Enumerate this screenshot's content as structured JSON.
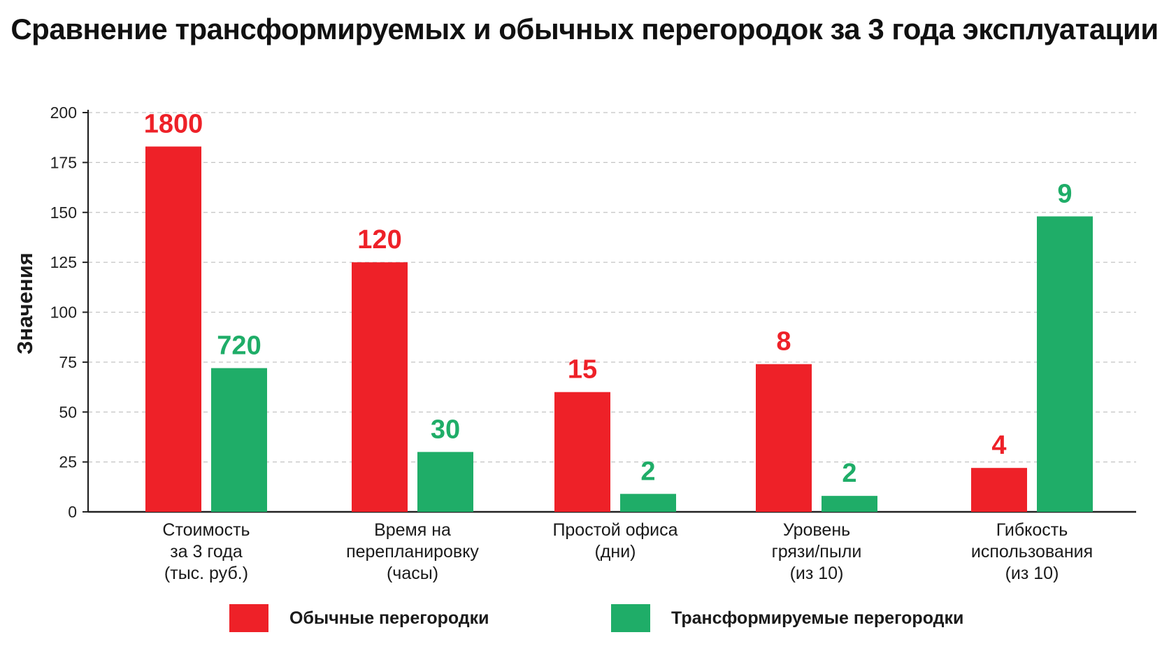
{
  "chart_data": {
    "type": "bar",
    "title": "Сравнение трансформируемых и обычных перегородок за 3 года эксплуатации",
    "ylabel": "Значения",
    "xlabel": "",
    "ylim": [
      0,
      200
    ],
    "yticks": [
      "0",
      "25",
      "50",
      "75",
      "100",
      "125",
      "150",
      "175",
      "200"
    ],
    "grid": true,
    "legend_position": "bottom",
    "categories": [
      [
        "Стоимость",
        "за 3 года",
        "(тыс. руб.)"
      ],
      [
        "Время на",
        "перепланировку",
        "(часы)"
      ],
      [
        "Простой офиса",
        "(дни)"
      ],
      [
        "Уровень",
        "грязи/пыли",
        "(из 10)"
      ],
      [
        "Гибкость",
        "использования",
        "(из 10)"
      ]
    ],
    "series": [
      {
        "name": "Обычные перегородки",
        "color": "#ee2128",
        "values": [
          183,
          125,
          60,
          74,
          22
        ],
        "labels": [
          "1800",
          "120",
          "15",
          "8",
          "4"
        ]
      },
      {
        "name": "Трансформируемые перегородки",
        "color": "#1fad68",
        "values": [
          72,
          30,
          9,
          8,
          148
        ],
        "labels": [
          "720",
          "30",
          "2",
          "2",
          "9"
        ]
      }
    ]
  }
}
